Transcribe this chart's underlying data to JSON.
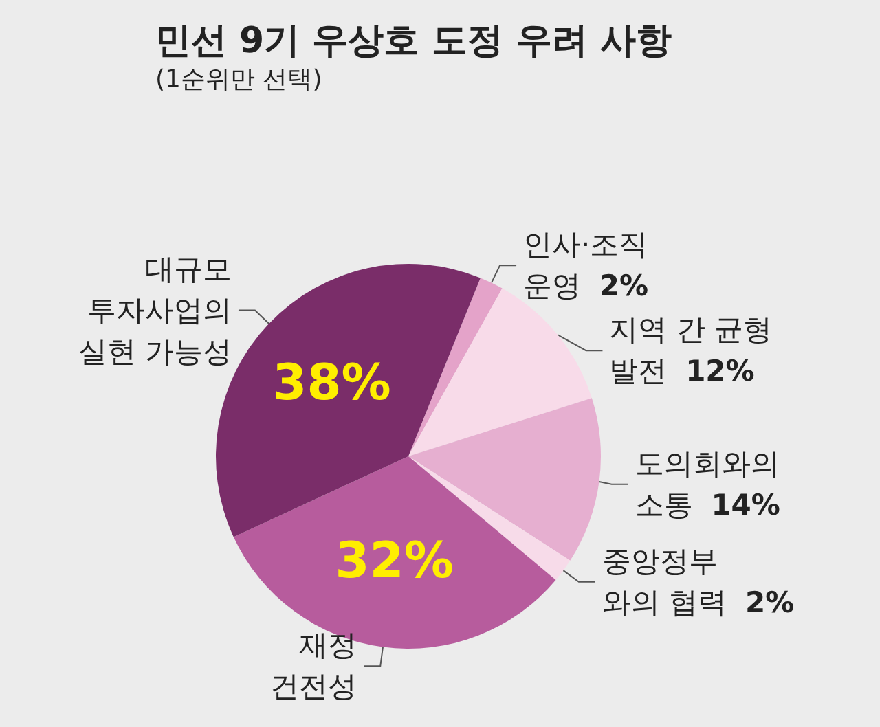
{
  "chart_data": {
    "type": "pie",
    "title": "민선 9기 우상호 도정 우려 사항",
    "subtitle": "(1순위만 선택)",
    "categories": [
      "인사·조직\n운영",
      "지역 간 균형\n발전",
      "도의회와의\n소통",
      "중앙정부\n와의 협력",
      "재정\n건전성",
      "대규모\n투자사업의\n실현 가능성"
    ],
    "values": [
      2,
      12,
      14,
      2,
      32,
      38
    ],
    "value_labels": [
      "2%",
      "12%",
      "14%",
      "2%",
      "32%",
      "38%"
    ],
    "colors": [
      "#e4a3c9",
      "#f8dbe9",
      "#e6afd0",
      "#f7dbe9",
      "#b75c9d",
      "#7a2d69"
    ]
  }
}
